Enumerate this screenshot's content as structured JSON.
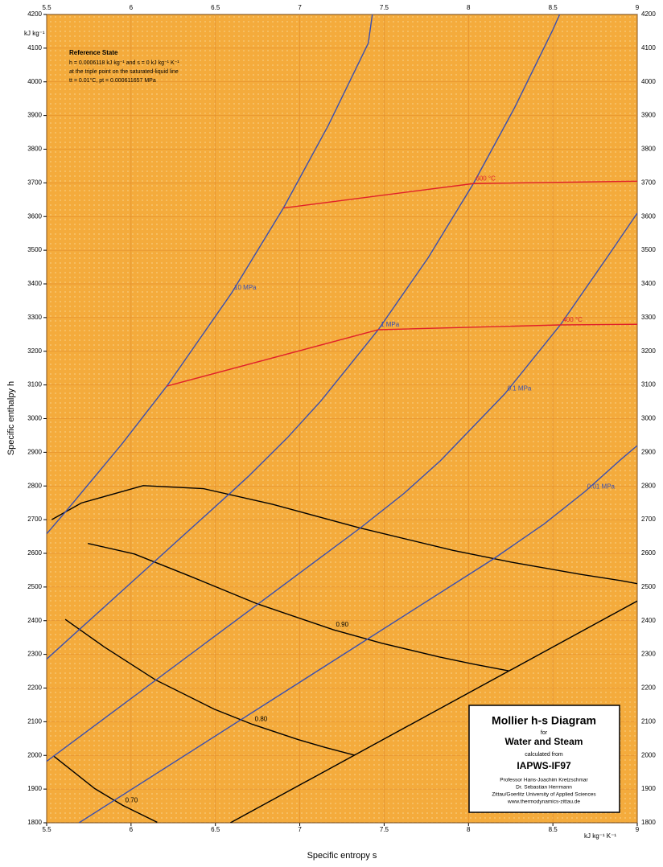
{
  "chart_data": {
    "type": "line",
    "x_label": "Specific entropy s",
    "y_label": "Specific enthalpy h",
    "y_unit": "kJ kg⁻¹",
    "x_unit": "kJ kg⁻¹ K⁻¹",
    "xlim": [
      5.5,
      9
    ],
    "ylim": [
      1800,
      4200
    ],
    "xticks": [
      5.5,
      6,
      6.5,
      7,
      7.5,
      8,
      8.5,
      9
    ],
    "yticks": [
      1800,
      1900,
      2000,
      2100,
      2200,
      2300,
      2400,
      2500,
      2600,
      2700,
      2800,
      2900,
      3000,
      3100,
      3200,
      3300,
      3400,
      3500,
      3600,
      3700,
      3800,
      3900,
      4000,
      4100,
      4200
    ],
    "grid": true,
    "reference_state": {
      "title": "Reference State",
      "lines": [
        "h = 0.0006118 kJ kg⁻¹ and s = 0 kJ kg⁻¹ K⁻¹",
        "at the triple point on the saturated-liquid line",
        "tt = 0.01°C,  pt = 0.000611657 MPa"
      ]
    },
    "title_box": {
      "title": "Mollier h-s Diagram",
      "for": "for",
      "substance": "Water and Steam",
      "calculated": "calculated from",
      "formulation": "IAPWS-IF97",
      "credits": [
        "Professor Hans-Joachim Kretzschmar",
        "Dr. Sebastian Herrmann",
        "Zittau/Goerlitz University of Applied Sciences",
        "www.thermodynamics-zittau.de"
      ]
    },
    "series": [
      {
        "color": "#000000",
        "x": [
          5.53,
          5.706,
          6.072,
          6.43,
          6.837,
          7.354,
          7.908,
          8.256,
          8.666,
          8.9,
          9
        ],
        "values": [
          2700,
          2749.6,
          2801,
          2792,
          2745.9,
          2675.6,
          2608.8,
          2573.5,
          2537.4,
          2519.2,
          2510
        ]
      },
      {
        "name": "0.90",
        "color": "#000000",
        "x": [
          5.744,
          6.02,
          6.338,
          6.749,
          7.2,
          7.487,
          7.829,
          8.025,
          8.24
        ],
        "values": [
          2629.5,
          2598,
          2534.5,
          2449.9,
          2373,
          2332.9,
          2292.1,
          2271.5,
          2250.8
        ]
      },
      {
        "name": "0.80",
        "color": "#000000",
        "x": [
          5.61,
          5.838,
          6.145,
          6.493,
          6.719,
          6.992,
          7.15,
          7.324
        ],
        "values": [
          2404.1,
          2323.2,
          2224.3,
          2137.3,
          2092.3,
          2046.7,
          2023.8,
          2000.7
        ]
      },
      {
        "name": "0.70",
        "color": "#000000",
        "x": [
          5.54,
          5.785,
          5.951,
          6.155
        ],
        "values": [
          1998.7,
          1901.5,
          1851.7,
          1801.4
        ]
      },
      {
        "color": "#000000",
        "x": [
          6.589,
          9
        ],
        "values": [
          1800,
          2458.4
        ]
      },
      {
        "name": "0.01 MPa",
        "color": "#3a4fb0",
        "x": [
          5.692,
          8.149,
          8.449,
          8.689,
          8.905,
          9
        ],
        "values": [
          1800,
          2583.9,
          2687.5,
          2783,
          2879.5,
          2920
        ]
      },
      {
        "name": "0.1 MPa",
        "color": "#3a4fb0",
        "x": [
          5.5,
          7.359,
          7.614,
          7.834,
          8.216,
          8.544,
          8.834,
          9
        ],
        "values": [
          1982.5,
          2675.5,
          2776.4,
          2875.3,
          3074.3,
          3278.2,
          3488.1,
          3610
        ]
      },
      {
        "name": "1 MPa",
        "color": "#3a4fb0",
        "x": [
          5.5,
          6.586,
          6.694,
          6.925,
          7.123,
          7.465,
          7.762,
          8.029,
          8.273,
          8.5,
          8.54
        ],
        "values": [
          2286.1,
          2778.1,
          2827.9,
          2942.6,
          3051.2,
          3263.9,
          3478.5,
          3697.9,
          3923.1,
          4154.7,
          4200
        ]
      },
      {
        "name": "10 MPa",
        "color": "#3a4fb0",
        "x": [
          5.5,
          5.614,
          5.944,
          6.212,
          6.597,
          6.903,
          7.169,
          7.406,
          7.43
        ],
        "values": [
          2658.1,
          2724.7,
          2923.4,
          3096.5,
          3373.7,
          3625.3,
          3870.5,
          4114.9,
          4200
        ]
      },
      {
        "name": "400 °C",
        "color": "#e0202a",
        "x": [
          6.212,
          7.465,
          8.544,
          9
        ],
        "values": [
          3096.5,
          3263.9,
          3278.2,
          3280
        ]
      },
      {
        "name": "600 °C",
        "color": "#e0202a",
        "x": [
          6.903,
          8.029,
          9
        ],
        "values": [
          3625.3,
          3697.9,
          3705
        ]
      }
    ]
  }
}
